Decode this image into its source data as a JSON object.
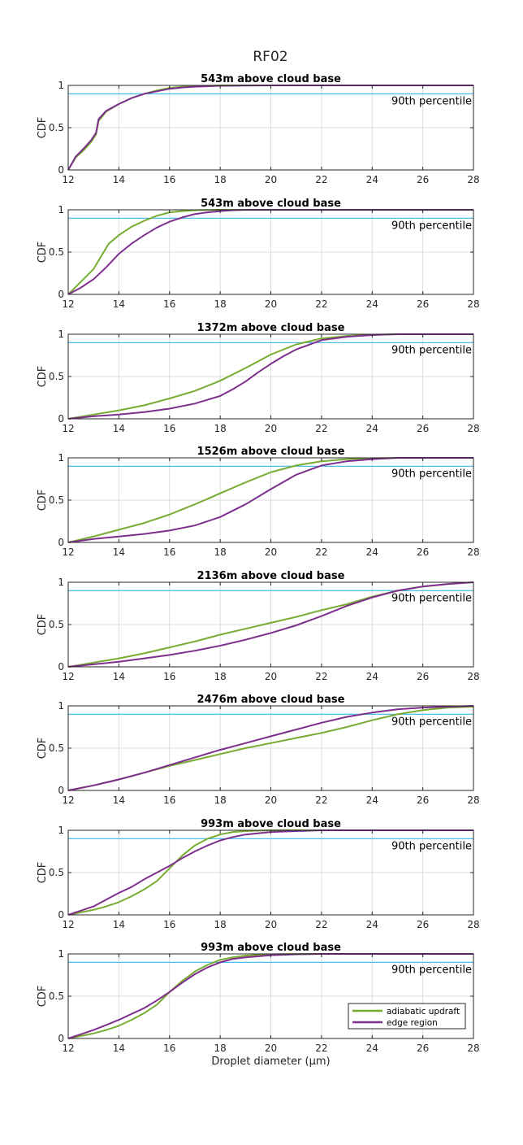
{
  "figure_title": "RF02",
  "xlabel": "Droplet diameter (μm)",
  "ylabel": "CDF",
  "percentile_label": "90th percentile",
  "colors": {
    "adiabatic": "#77ac30",
    "edge": "#7e2f8e",
    "percentile_line": "#4dbeee",
    "grid": "#dcdcdc"
  },
  "legend": {
    "placement": "lower-right of last panel",
    "entries": [
      "adiabatic updraft",
      "edge region"
    ]
  },
  "chart_data": [
    {
      "type": "line",
      "title": "543m above cloud base",
      "xlabel": "",
      "ylabel": "CDF",
      "xlim": [
        12,
        28
      ],
      "ylim": [
        0,
        1
      ],
      "xticks": [
        "12",
        "14",
        "16",
        "18",
        "20",
        "22",
        "24",
        "26",
        "28"
      ],
      "yticks": [
        "0",
        "0.5",
        "1"
      ],
      "grid": true,
      "hline": 0.9,
      "series": [
        {
          "name": "adiabatic updraft",
          "x": [
            12,
            12.3,
            12.6,
            12.9,
            13.1,
            13.2,
            13.5,
            14,
            14.5,
            15,
            15.5,
            16,
            16.5,
            17,
            18,
            20,
            24,
            28
          ],
          "y": [
            0,
            0.15,
            0.23,
            0.33,
            0.42,
            0.58,
            0.69,
            0.78,
            0.85,
            0.9,
            0.94,
            0.97,
            0.985,
            0.99,
            1,
            1,
            1,
            1
          ]
        },
        {
          "name": "edge region",
          "x": [
            12,
            12.3,
            12.6,
            12.9,
            13.1,
            13.2,
            13.5,
            14,
            14.5,
            15,
            15.5,
            16,
            16.5,
            17,
            18,
            20,
            24,
            28
          ],
          "y": [
            0,
            0.16,
            0.25,
            0.35,
            0.44,
            0.6,
            0.7,
            0.78,
            0.85,
            0.9,
            0.93,
            0.96,
            0.975,
            0.985,
            0.995,
            1,
            1,
            1
          ]
        }
      ]
    },
    {
      "type": "line",
      "title": "543m above cloud base",
      "xlabel": "",
      "ylabel": "CDF",
      "xlim": [
        12,
        28
      ],
      "ylim": [
        0,
        1
      ],
      "xticks": [
        "12",
        "14",
        "16",
        "18",
        "20",
        "22",
        "24",
        "26",
        "28"
      ],
      "yticks": [
        "0",
        "0.5",
        "1"
      ],
      "grid": true,
      "hline": 0.9,
      "series": [
        {
          "name": "adiabatic updraft",
          "x": [
            12,
            12.5,
            13,
            13.3,
            13.6,
            14,
            14.5,
            15,
            15.5,
            16,
            16.5,
            17,
            18,
            20,
            28
          ],
          "y": [
            0,
            0.15,
            0.3,
            0.45,
            0.6,
            0.7,
            0.8,
            0.87,
            0.93,
            0.97,
            0.985,
            0.995,
            1,
            1,
            1
          ]
        },
        {
          "name": "edge region",
          "x": [
            12,
            12.5,
            13,
            13.5,
            14,
            14.5,
            15,
            15.5,
            16,
            16.5,
            17,
            17.5,
            18,
            18.5,
            19,
            20,
            28
          ],
          "y": [
            0,
            0.08,
            0.18,
            0.32,
            0.48,
            0.6,
            0.7,
            0.79,
            0.86,
            0.91,
            0.95,
            0.97,
            0.985,
            0.995,
            1,
            1,
            1
          ]
        }
      ]
    },
    {
      "type": "line",
      "title": "1372m above cloud base",
      "xlabel": "",
      "ylabel": "CDF",
      "xlim": [
        12,
        28
      ],
      "ylim": [
        0,
        1
      ],
      "xticks": [
        "12",
        "14",
        "16",
        "18",
        "20",
        "22",
        "24",
        "26",
        "28"
      ],
      "yticks": [
        "0",
        "0.5",
        "1"
      ],
      "grid": true,
      "hline": 0.9,
      "series": [
        {
          "name": "adiabatic updraft",
          "x": [
            12,
            13,
            14,
            15,
            16,
            17,
            18,
            19,
            20,
            21,
            22,
            23,
            24,
            25,
            26,
            28
          ],
          "y": [
            0,
            0.05,
            0.1,
            0.16,
            0.24,
            0.33,
            0.45,
            0.6,
            0.76,
            0.88,
            0.95,
            0.98,
            0.995,
            1,
            1,
            1
          ]
        },
        {
          "name": "edge region",
          "x": [
            12,
            13,
            14,
            15,
            16,
            17,
            18,
            18.5,
            19,
            19.5,
            20,
            20.5,
            21,
            22,
            23,
            24,
            25,
            26,
            28
          ],
          "y": [
            0,
            0.03,
            0.05,
            0.08,
            0.12,
            0.18,
            0.27,
            0.35,
            0.44,
            0.55,
            0.65,
            0.74,
            0.82,
            0.93,
            0.97,
            0.99,
            1,
            1,
            1
          ]
        }
      ]
    },
    {
      "type": "line",
      "title": "1526m above cloud base",
      "xlabel": "",
      "ylabel": "CDF",
      "xlim": [
        12,
        28
      ],
      "ylim": [
        0,
        1
      ],
      "xticks": [
        "12",
        "14",
        "16",
        "18",
        "20",
        "22",
        "24",
        "26",
        "28"
      ],
      "yticks": [
        "0",
        "0.5",
        "1"
      ],
      "grid": true,
      "hline": 0.9,
      "series": [
        {
          "name": "adiabatic updraft",
          "x": [
            12,
            13,
            14,
            15,
            16,
            17,
            18,
            19,
            20,
            21,
            22,
            23,
            24,
            25,
            26,
            28
          ],
          "y": [
            0,
            0.07,
            0.15,
            0.23,
            0.33,
            0.45,
            0.58,
            0.71,
            0.83,
            0.91,
            0.96,
            0.985,
            0.995,
            1,
            1,
            1
          ]
        },
        {
          "name": "edge region",
          "x": [
            12,
            13,
            14,
            15,
            16,
            17,
            18,
            19,
            20,
            21,
            22,
            23,
            24,
            25,
            26,
            28
          ],
          "y": [
            0,
            0.04,
            0.07,
            0.1,
            0.14,
            0.2,
            0.3,
            0.45,
            0.63,
            0.8,
            0.91,
            0.96,
            0.985,
            1,
            1,
            1
          ]
        }
      ]
    },
    {
      "type": "line",
      "title": "2136m above cloud base",
      "xlabel": "",
      "ylabel": "CDF",
      "xlim": [
        12,
        28
      ],
      "ylim": [
        0,
        1
      ],
      "xticks": [
        "12",
        "14",
        "16",
        "18",
        "20",
        "22",
        "24",
        "26",
        "28"
      ],
      "yticks": [
        "0",
        "0.5",
        "1"
      ],
      "grid": true,
      "hline": 0.9,
      "series": [
        {
          "name": "adiabatic updraft",
          "x": [
            12,
            13,
            14,
            15,
            16,
            17,
            18,
            19,
            20,
            21,
            22,
            23,
            24,
            25,
            26,
            27,
            28
          ],
          "y": [
            0,
            0.05,
            0.1,
            0.16,
            0.23,
            0.3,
            0.38,
            0.45,
            0.52,
            0.59,
            0.67,
            0.74,
            0.83,
            0.9,
            0.95,
            0.98,
            1
          ]
        },
        {
          "name": "edge region",
          "x": [
            12,
            13,
            14,
            15,
            16,
            17,
            18,
            19,
            20,
            21,
            22,
            23,
            24,
            25,
            26,
            27,
            28
          ],
          "y": [
            0,
            0.03,
            0.06,
            0.1,
            0.14,
            0.19,
            0.25,
            0.32,
            0.4,
            0.49,
            0.6,
            0.72,
            0.82,
            0.9,
            0.95,
            0.98,
            1
          ]
        }
      ]
    },
    {
      "type": "line",
      "title": "2476m above cloud base",
      "xlabel": "",
      "ylabel": "CDF",
      "xlim": [
        12,
        28
      ],
      "ylim": [
        0,
        1
      ],
      "xticks": [
        "12",
        "14",
        "16",
        "18",
        "20",
        "22",
        "24",
        "26",
        "28"
      ],
      "yticks": [
        "0",
        "0.5",
        "1"
      ],
      "grid": true,
      "hline": 0.9,
      "series": [
        {
          "name": "adiabatic updraft",
          "x": [
            12,
            13,
            14,
            15,
            16,
            17,
            18,
            19,
            20,
            21,
            22,
            23,
            24,
            25,
            26,
            27,
            28
          ],
          "y": [
            0,
            0.06,
            0.13,
            0.21,
            0.29,
            0.36,
            0.43,
            0.5,
            0.56,
            0.62,
            0.68,
            0.75,
            0.83,
            0.9,
            0.95,
            0.98,
            0.99
          ]
        },
        {
          "name": "edge region",
          "x": [
            12,
            13,
            14,
            15,
            16,
            17,
            18,
            19,
            20,
            21,
            22,
            23,
            24,
            25,
            26,
            27,
            28
          ],
          "y": [
            0,
            0.06,
            0.13,
            0.21,
            0.3,
            0.39,
            0.48,
            0.56,
            0.64,
            0.72,
            0.8,
            0.87,
            0.92,
            0.96,
            0.98,
            0.99,
            1
          ]
        }
      ]
    },
    {
      "type": "line",
      "title": "993m above cloud base",
      "xlabel": "",
      "ylabel": "CDF",
      "xlim": [
        12,
        28
      ],
      "ylim": [
        0,
        1
      ],
      "xticks": [
        "12",
        "14",
        "16",
        "18",
        "20",
        "22",
        "24",
        "26",
        "28"
      ],
      "yticks": [
        "0",
        "0.5",
        "1"
      ],
      "grid": true,
      "hline": 0.9,
      "series": [
        {
          "name": "adiabatic updraft",
          "x": [
            12,
            12.5,
            13,
            13.5,
            14,
            14.5,
            15,
            15.5,
            16,
            16.5,
            17,
            17.5,
            18,
            18.5,
            19,
            20,
            22,
            28
          ],
          "y": [
            0,
            0.03,
            0.06,
            0.1,
            0.15,
            0.22,
            0.3,
            0.4,
            0.55,
            0.7,
            0.82,
            0.9,
            0.95,
            0.98,
            0.99,
            1,
            1,
            1
          ]
        },
        {
          "name": "edge region",
          "x": [
            12,
            12.5,
            13,
            13.5,
            14,
            14.5,
            15,
            15.5,
            16,
            16.5,
            17,
            17.5,
            18,
            18.5,
            19,
            20,
            21,
            22,
            28
          ],
          "y": [
            0,
            0.05,
            0.1,
            0.18,
            0.26,
            0.33,
            0.42,
            0.5,
            0.58,
            0.67,
            0.75,
            0.82,
            0.88,
            0.92,
            0.95,
            0.98,
            0.99,
            1,
            1
          ]
        }
      ]
    },
    {
      "type": "line",
      "title": "993m above cloud base",
      "xlabel": "Droplet diameter (μm)",
      "ylabel": "CDF",
      "xlim": [
        12,
        28
      ],
      "ylim": [
        0,
        1
      ],
      "xticks": [
        "12",
        "14",
        "16",
        "18",
        "20",
        "22",
        "24",
        "26",
        "28"
      ],
      "yticks": [
        "0",
        "0.5",
        "1"
      ],
      "grid": true,
      "hline": 0.9,
      "series": [
        {
          "name": "adiabatic updraft",
          "x": [
            12,
            12.5,
            13,
            13.5,
            14,
            14.5,
            15,
            15.5,
            16,
            16.5,
            17,
            17.5,
            18,
            18.5,
            19,
            20,
            21,
            22,
            28
          ],
          "y": [
            0,
            0.03,
            0.06,
            0.1,
            0.15,
            0.22,
            0.3,
            0.4,
            0.55,
            0.68,
            0.79,
            0.87,
            0.93,
            0.96,
            0.98,
            0.995,
            1,
            1,
            1
          ]
        },
        {
          "name": "edge region",
          "x": [
            12,
            12.5,
            13,
            13.5,
            14,
            14.5,
            15,
            15.5,
            16,
            16.5,
            17,
            17.5,
            18,
            18.5,
            19,
            20,
            21,
            22,
            28
          ],
          "y": [
            0,
            0.05,
            0.1,
            0.16,
            0.22,
            0.29,
            0.36,
            0.45,
            0.55,
            0.66,
            0.76,
            0.84,
            0.9,
            0.94,
            0.96,
            0.985,
            0.995,
            1,
            1
          ]
        }
      ]
    }
  ]
}
